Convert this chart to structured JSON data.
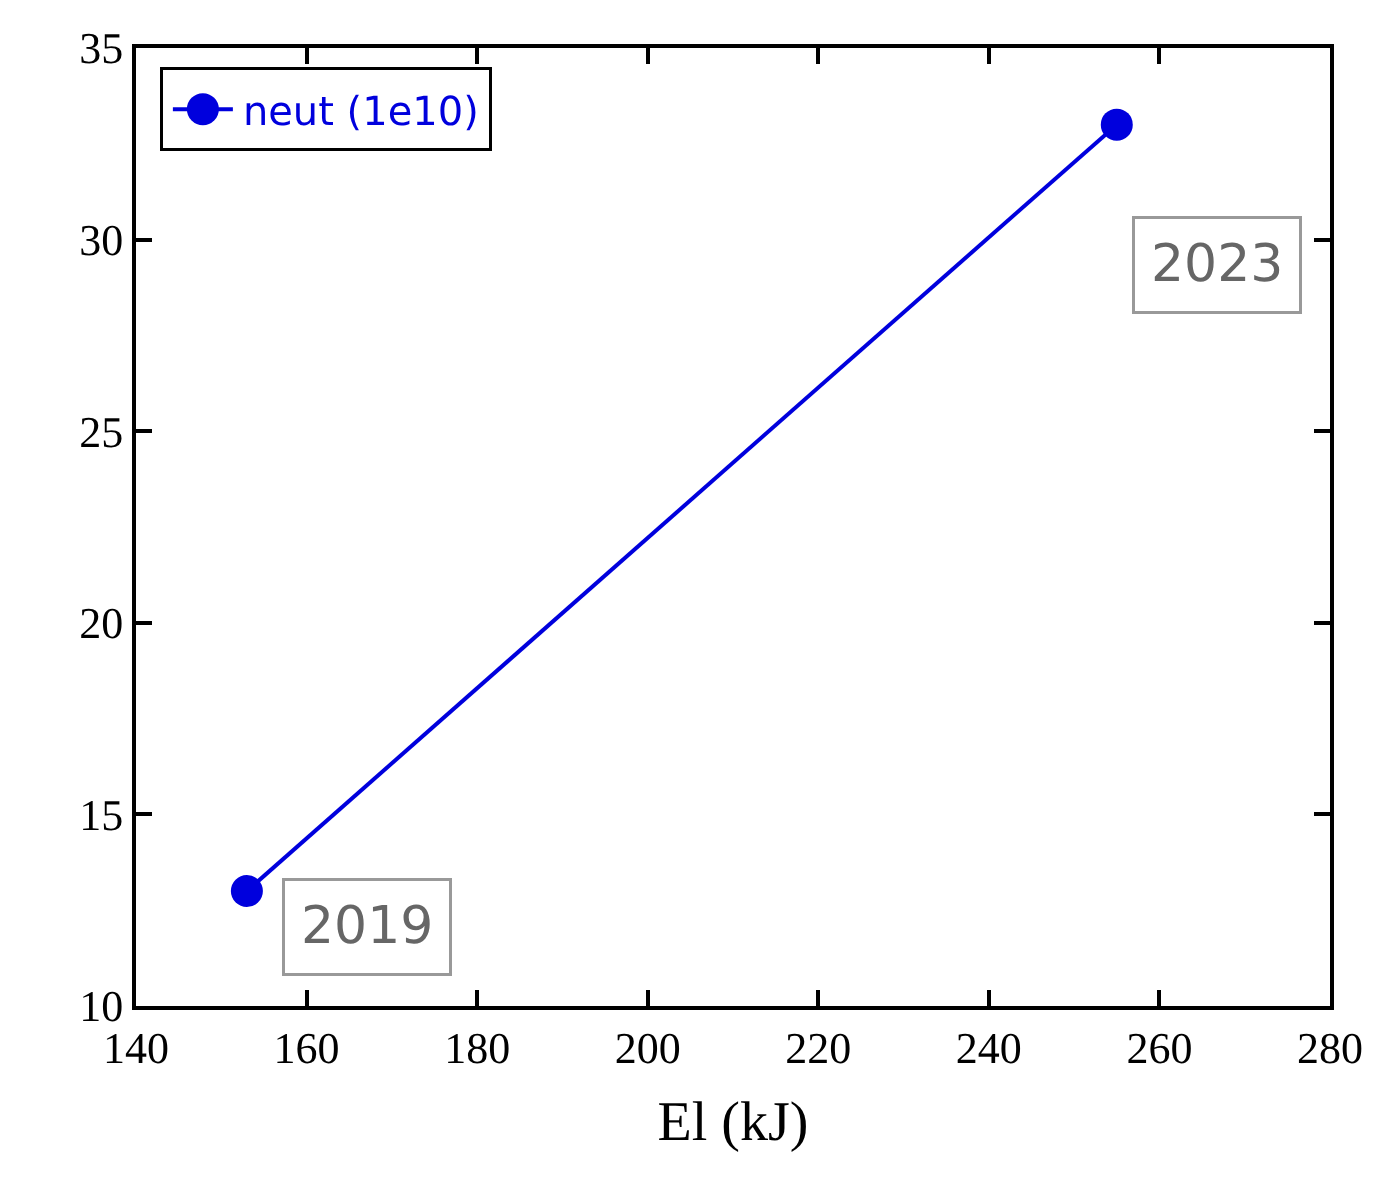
{
  "chart_data": {
    "type": "line",
    "xlabel": "El (kJ)",
    "series": [
      {
        "name": "neut (1e10)",
        "color": "#0000dd",
        "x": [
          153,
          255
        ],
        "values": [
          13,
          33
        ]
      }
    ],
    "xlim": [
      140,
      280
    ],
    "xticks": [
      140,
      160,
      180,
      200,
      220,
      240,
      260,
      280
    ],
    "ylim": [
      10,
      35
    ],
    "yticks": [
      10,
      15,
      20,
      25,
      30,
      35
    ],
    "annotations": [
      {
        "text": "2019",
        "x": 153,
        "y": 13
      },
      {
        "text": "2023",
        "x": 255,
        "y": 33
      }
    ],
    "legend": "top left",
    "marker": "circle",
    "line_style": "solid"
  }
}
